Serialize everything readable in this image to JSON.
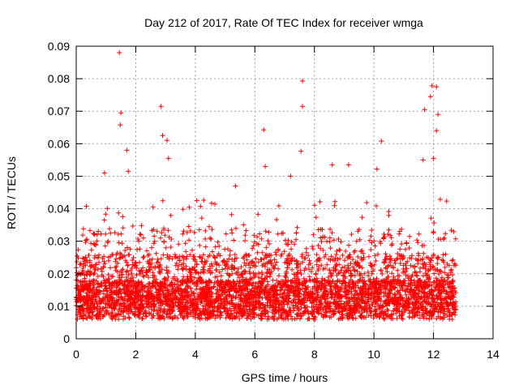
{
  "chart_data": {
    "type": "scatter",
    "title": "Day 212 of 2017, Rate Of TEC Index for receiver wmga",
    "xlabel": "GPS time / hours",
    "ylabel": "ROTI / TECUs",
    "xlim": [
      0,
      14
    ],
    "ylim": [
      0,
      0.09
    ],
    "grid": true,
    "marker": "+",
    "marker_color": "#ff0000",
    "x_ticks": [
      0,
      2,
      4,
      6,
      8,
      10,
      12,
      14
    ],
    "x_tick_labels": [
      "0",
      "2",
      "4",
      "6",
      "8",
      "10",
      "12",
      "14"
    ],
    "y_ticks": [
      0,
      0.01,
      0.02,
      0.03,
      0.04,
      0.05,
      0.06,
      0.07,
      0.08,
      0.09
    ],
    "y_tick_labels": [
      "0",
      "0.01",
      "0.02",
      "0.03",
      "0.04",
      "0.05",
      "0.06",
      "0.07",
      "0.08",
      "0.09"
    ],
    "series": [
      {
        "name": "ROTI",
        "note": "dense band of points from 0 to 12.75 h, mostly 0.005-0.03 TECU with sparse peaks; representative sample below",
        "x_range": [
          0,
          12.75
        ],
        "dense_band": [
          0.005,
          0.03
        ],
        "outliers": [
          [
            1.45,
            0.088
          ],
          [
            1.5,
            0.0695
          ],
          [
            1.48,
            0.0658
          ],
          [
            2.85,
            0.0715
          ],
          [
            2.9,
            0.0625
          ],
          [
            3.05,
            0.061
          ],
          [
            3.1,
            0.0555
          ],
          [
            6.3,
            0.0643
          ],
          [
            7.6,
            0.0793
          ],
          [
            7.6,
            0.0715
          ],
          [
            7.55,
            0.0577
          ],
          [
            10.25,
            0.0608
          ],
          [
            10.1,
            0.0522
          ],
          [
            11.95,
            0.0778
          ],
          [
            11.9,
            0.0745
          ],
          [
            11.7,
            0.0705
          ],
          [
            12.1,
            0.0775
          ],
          [
            12.15,
            0.069
          ],
          [
            12.1,
            0.064
          ],
          [
            12.0,
            0.0555
          ],
          [
            11.65,
            0.055
          ],
          [
            1.7,
            0.058
          ],
          [
            1.75,
            0.0515
          ],
          [
            8.6,
            0.0535
          ],
          [
            9.15,
            0.0535
          ],
          [
            6.35,
            0.053
          ],
          [
            5.35,
            0.047
          ],
          [
            7.2,
            0.05
          ],
          [
            0.95,
            0.051
          ],
          [
            4.05,
            0.0425
          ]
        ]
      }
    ]
  }
}
